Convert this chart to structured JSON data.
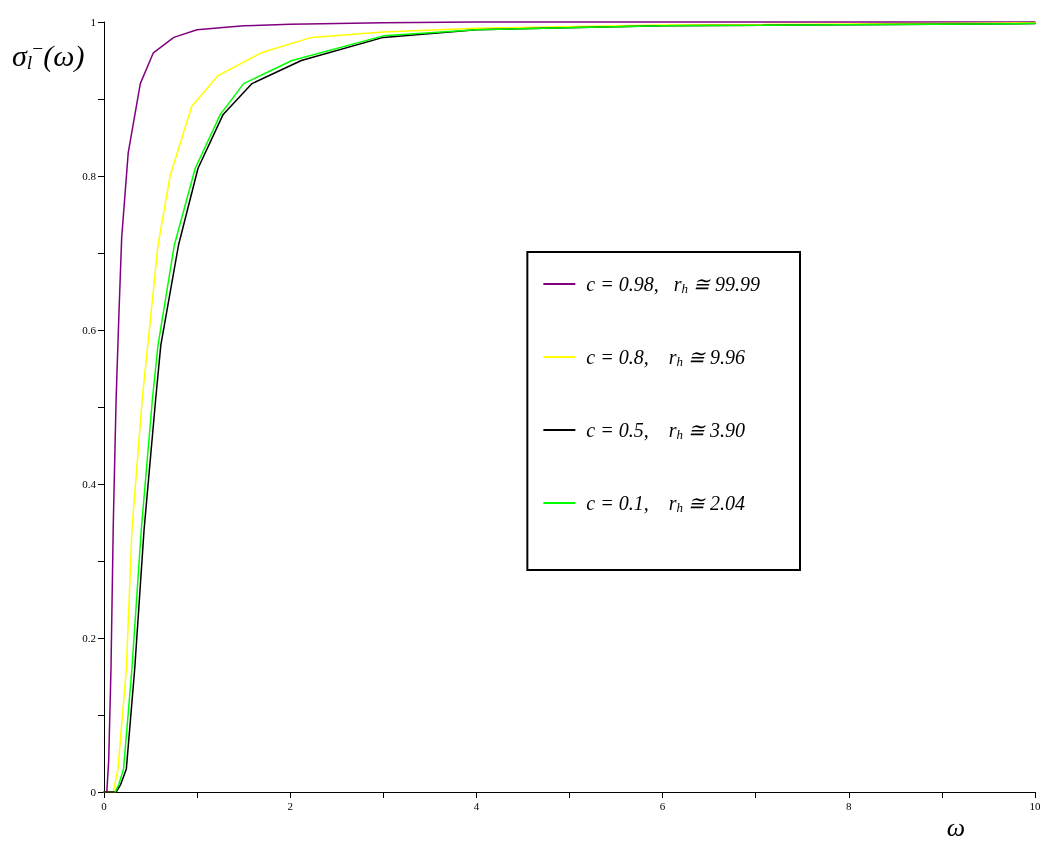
{
  "chart_data": {
    "type": "line",
    "xlabel": "ω",
    "ylabel": "σ$_{l}$$^{−}$(ω)",
    "xlim": [
      0,
      10
    ],
    "ylim": [
      0,
      1
    ],
    "xticks": [
      0,
      {
        "value": 1,
        "label": null
      },
      2,
      {
        "value": 3,
        "label": null
      },
      4,
      {
        "value": 5,
        "label": null
      },
      6,
      {
        "value": 7,
        "label": null
      },
      8,
      {
        "value": 9,
        "label": null
      },
      10
    ],
    "yticks": [
      0,
      {
        "value": 0.1,
        "label": null
      },
      0.2,
      {
        "value": 0.3,
        "label": null
      },
      0.4,
      {
        "value": 0.5,
        "label": null
      },
      0.6,
      {
        "value": 0.7,
        "label": null
      },
      0.8,
      {
        "value": 0.9,
        "label": null
      },
      1
    ],
    "legend": "right",
    "grid": false,
    "series": [
      {
        "name": "c = 0.98,   r$_{h}$ ≅ 99.99",
        "color": "#800080",
        "x": [
          0,
          0.03,
          0.05,
          0.075,
          0.1,
          0.13,
          0.16,
          0.19,
          0.26,
          0.39,
          0.53,
          0.75,
          1,
          1.5,
          2,
          3,
          4,
          6,
          10
        ],
        "values": [
          0,
          0,
          0.04,
          0.16,
          0.35,
          0.51,
          0.62,
          0.72,
          0.83,
          0.92,
          0.96,
          0.98,
          0.99,
          0.995,
          0.997,
          0.999,
          1,
          1,
          1
        ]
      },
      {
        "name": "c = 0.8,    r$_{h}$ ≅ 9.96",
        "color": "#ffff00",
        "x": [
          0,
          0.1,
          0.15,
          0.24,
          0.3,
          0.41,
          0.47,
          0.58,
          0.71,
          0.94,
          1.22,
          1.69,
          2.23,
          3,
          4,
          6,
          10
        ],
        "values": [
          0,
          0,
          0.03,
          0.16,
          0.34,
          0.51,
          0.58,
          0.71,
          0.8,
          0.89,
          0.93,
          0.96,
          0.98,
          0.987,
          0.992,
          0.996,
          0.999
        ]
      },
      {
        "name": "c = 0.5,    r$_{h}$ ≅ 3.90",
        "color": "#000000",
        "x": [
          0,
          0.13,
          0.18,
          0.24,
          0.33,
          0.43,
          0.555,
          0.61,
          0.8,
          1.01,
          1.28,
          1.59,
          2.12,
          3,
          4,
          6,
          10
        ],
        "values": [
          0,
          0,
          0.01,
          0.03,
          0.16,
          0.34,
          0.51,
          0.58,
          0.71,
          0.81,
          0.88,
          0.92,
          0.95,
          0.98,
          0.99,
          0.995,
          0.998
        ]
      },
      {
        "name": "c = 0.1,    r$_{h}$ ≅ 2.04",
        "color": "#00ff00",
        "x": [
          0.12,
          0.16,
          0.21,
          0.3,
          0.4,
          0.52,
          0.58,
          0.755,
          0.98,
          1.25,
          1.5,
          2.02,
          3,
          4,
          6,
          10
        ],
        "values": [
          0,
          0.01,
          0.03,
          0.16,
          0.34,
          0.51,
          0.58,
          0.71,
          0.81,
          0.88,
          0.92,
          0.95,
          0.982,
          0.99,
          0.995,
          0.998
        ]
      }
    ]
  }
}
